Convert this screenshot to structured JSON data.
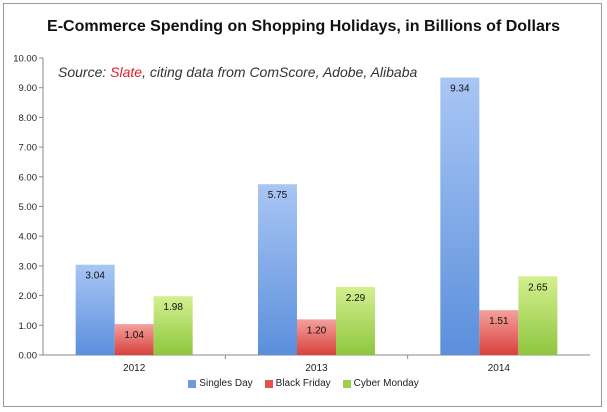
{
  "chart_data": {
    "type": "bar",
    "title": "E-Commerce Spending on Shopping Holidays, in Billions of Dollars",
    "source_prefix": "Source: ",
    "source_name": "Slate",
    "source_suffix": ", citing data from ComScore, Adobe, Alibaba",
    "xlabel": "",
    "ylabel": "",
    "ylim": [
      0,
      10
    ],
    "yticks": [
      "0.00",
      "1.00",
      "2.00",
      "3.00",
      "4.00",
      "5.00",
      "6.00",
      "7.00",
      "8.00",
      "9.00",
      "10.00"
    ],
    "categories": [
      "2012",
      "2013",
      "2014"
    ],
    "legend_position": "bottom",
    "grid": false,
    "series": [
      {
        "name": "Singles Day",
        "values": [
          3.04,
          5.75,
          9.34
        ],
        "labels": [
          "3.04",
          "5.75",
          "9.34"
        ],
        "color": "#5b8fdc",
        "color_light": "#a9c6f4"
      },
      {
        "name": "Black Friday",
        "values": [
          1.04,
          1.2,
          1.51
        ],
        "labels": [
          "1.04",
          "1.20",
          "1.51"
        ],
        "color": "#d9413d",
        "color_light": "#f3a19c"
      },
      {
        "name": "Cyber Monday",
        "values": [
          1.98,
          2.29,
          2.65
        ],
        "labels": [
          "1.98",
          "2.29",
          "2.65"
        ],
        "color": "#8ec63f",
        "color_light": "#d3f08f"
      }
    ]
  }
}
